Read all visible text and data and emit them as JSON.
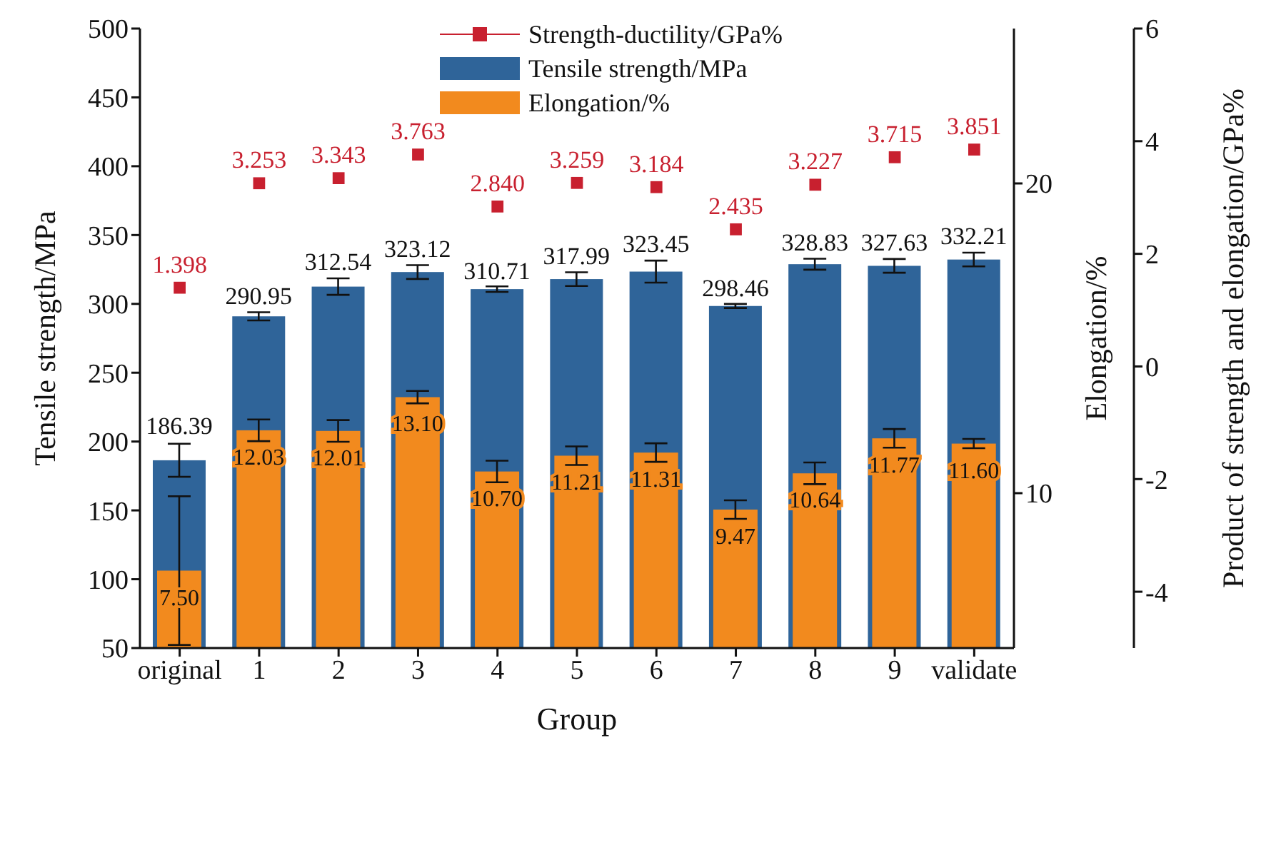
{
  "chart_data": {
    "type": "bar",
    "xlabel": "Group",
    "ylabel": "Tensile strength/MPa",
    "y2label": "Elongation/%",
    "y3label": "Product of strength and elongation/GPa%",
    "categories": [
      "original",
      "1",
      "2",
      "3",
      "4",
      "5",
      "6",
      "7",
      "8",
      "9",
      "validate"
    ],
    "ylim": [
      50,
      500
    ],
    "yticks": [
      50,
      100,
      150,
      200,
      250,
      300,
      350,
      400,
      450,
      500
    ],
    "y2lim": [
      5,
      25
    ],
    "y2ticks": [
      10,
      20
    ],
    "y3lim": [
      -5,
      6
    ],
    "y3ticks": [
      -4,
      -2,
      0,
      2,
      4,
      6
    ],
    "legend": "top",
    "grid": false,
    "marker": "square",
    "series": [
      {
        "name": "Strength-ductility/GPa%",
        "type": "scatter",
        "axis": "y3",
        "color": "#c8202f",
        "values": [
          1.398,
          3.253,
          3.343,
          3.763,
          2.84,
          3.259,
          3.184,
          2.435,
          3.227,
          3.715,
          3.851
        ],
        "value_labels": [
          "1.398",
          "3.253",
          "3.343",
          "3.763",
          "2.840",
          "3.259",
          "3.184",
          "2.435",
          "3.227",
          "3.715",
          "3.851"
        ]
      },
      {
        "name": "Tensile strength/MPa",
        "color": "#2f6499",
        "values": [
          186.39,
          290.95,
          312.54,
          323.12,
          310.71,
          317.99,
          323.45,
          298.46,
          328.83,
          327.63,
          332.21
        ],
        "errors": [
          12,
          3,
          6,
          5,
          2,
          5,
          8,
          1.5,
          4,
          5,
          5
        ],
        "value_labels": [
          "186.39",
          "290.95",
          "312.54",
          "323.12",
          "310.71",
          "317.99",
          "323.45",
          "298.46",
          "328.83",
          "327.63",
          "332.21"
        ]
      },
      {
        "name": "Elongation/%",
        "axis": "y2",
        "color": "#f28a1e",
        "values": [
          7.5,
          12.03,
          12.01,
          13.1,
          10.7,
          11.21,
          11.31,
          9.47,
          10.64,
          11.77,
          11.6
        ],
        "errors": [
          2.4,
          0.35,
          0.35,
          0.2,
          0.35,
          0.3,
          0.3,
          0.3,
          0.35,
          0.3,
          0.15
        ],
        "value_labels": [
          "7.50",
          "12.03",
          "12.01",
          "13.10",
          "10.70",
          "11.21",
          "11.31",
          "9.47",
          "10.64",
          "11.77",
          "11.60"
        ]
      }
    ]
  }
}
